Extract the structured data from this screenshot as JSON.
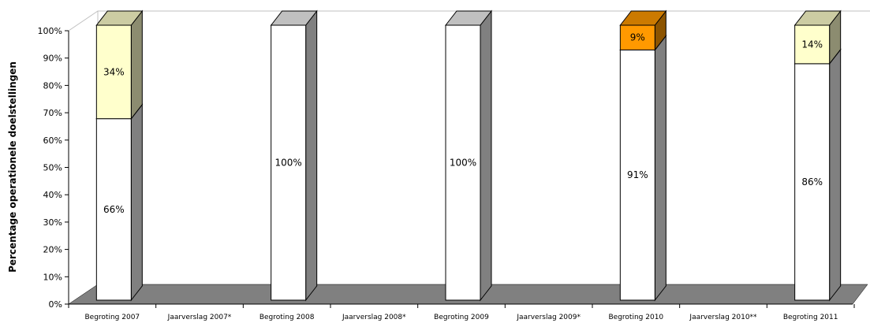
{
  "chart_data": {
    "type": "bar",
    "stacked": true,
    "three_d": true,
    "ylabel": "Percentage operationele doelstellingen",
    "xlabel": "",
    "ylim": [
      0,
      100
    ],
    "y_ticks": [
      "0%",
      "10%",
      "20%",
      "30%",
      "40%",
      "50%",
      "60%",
      "70%",
      "80%",
      "90%",
      "100%"
    ],
    "categories": [
      "Begroting 2007",
      "Jaarverslag 2007*",
      "Begroting 2008",
      "Jaarverslag 2008*",
      "Begroting 2009",
      "Jaarverslag 2009*",
      "Begroting 2010",
      "Jaarverslag 2010**",
      "Begroting 2011"
    ],
    "series": [
      {
        "color": "#ffffff",
        "values": [
          66,
          null,
          100,
          null,
          100,
          null,
          91,
          null,
          86
        ],
        "labels": [
          "66%",
          "",
          "100%",
          "",
          "100%",
          "",
          "91%",
          "",
          "86%"
        ]
      },
      {
        "color": "#ffffcc",
        "values": [
          34,
          null,
          0,
          null,
          0,
          null,
          0,
          null,
          14
        ],
        "labels": [
          "34%",
          "",
          "",
          "",
          "",
          "",
          "",
          "",
          "14%"
        ]
      },
      {
        "color": "#ff9900",
        "values": [
          0,
          null,
          0,
          null,
          0,
          null,
          9,
          null,
          0
        ],
        "labels": [
          "",
          "",
          "",
          "",
          "",
          "",
          "9%",
          "",
          ""
        ]
      }
    ],
    "grid": false,
    "legend": "none",
    "floor_color": "#808080"
  }
}
